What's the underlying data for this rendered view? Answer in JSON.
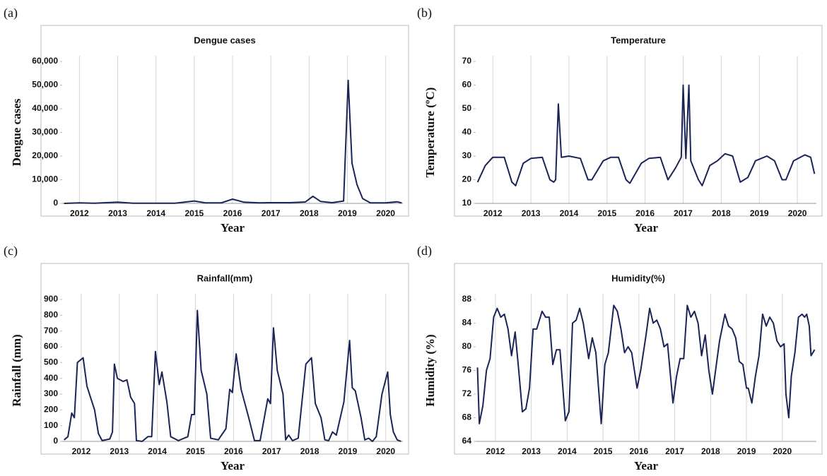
{
  "chart_data": [
    {
      "type": "line",
      "panel": "(a)",
      "title": "Dengue cases",
      "xlabel": "Year",
      "ylabel": "Dengue cases",
      "color": "#1a2456",
      "xlim": [
        2011.55,
        2020.45
      ],
      "xticks": [
        2012,
        2013,
        2014,
        2015,
        2016,
        2017,
        2018,
        2019,
        2020
      ],
      "grid": true,
      "ylim": [
        0,
        60000
      ],
      "yticks": [
        0,
        {
          "value": 10000,
          "label": "10,000"
        },
        {
          "value": 20000,
          "label": "20,000"
        },
        {
          "value": 30000,
          "label": "30,000"
        },
        {
          "value": 40000,
          "label": "40,000"
        },
        {
          "value": 50000,
          "label": "50,000"
        },
        {
          "value": 60000,
          "label": "60,000"
        }
      ],
      "x": [
        2011.6,
        2012,
        2012.4,
        2013,
        2013.4,
        2014,
        2014.5,
        2015,
        2015.3,
        2015.7,
        2016,
        2016.3,
        2016.7,
        2017,
        2017.5,
        2017.9,
        2018.1,
        2018.3,
        2018.6,
        2018.9,
        2019.02,
        2019.12,
        2019.25,
        2019.4,
        2019.6,
        2020,
        2020.3,
        2020.42
      ],
      "values": [
        0,
        200,
        100,
        500,
        100,
        100,
        100,
        1000,
        200,
        200,
        1800,
        500,
        200,
        300,
        300,
        600,
        3000,
        800,
        300,
        1000,
        52000,
        17000,
        8000,
        2000,
        200,
        200,
        700,
        200
      ]
    },
    {
      "type": "line",
      "panel": "(b)",
      "title": "Temperature",
      "xlabel": "Year",
      "ylabel": "Temperature (ºC)",
      "color": "#1a2456",
      "xlim": [
        2011.55,
        2020.5
      ],
      "xticks": [
        2012,
        2013,
        2014,
        2015,
        2016,
        2017,
        2018,
        2019,
        2020
      ],
      "grid": true,
      "ylim": [
        10,
        70
      ],
      "yticks": [
        10,
        20,
        30,
        40,
        50,
        60,
        70
      ],
      "x": [
        2011.6,
        2011.8,
        2012.0,
        2012.3,
        2012.5,
        2012.6,
        2012.8,
        2013.0,
        2013.3,
        2013.5,
        2013.6,
        2013.65,
        2013.72,
        2013.8,
        2014.0,
        2014.3,
        2014.5,
        2014.6,
        2014.9,
        2015.1,
        2015.3,
        2015.5,
        2015.6,
        2015.9,
        2016.1,
        2016.4,
        2016.6,
        2016.8,
        2016.95,
        2017.0,
        2017.07,
        2017.15,
        2017.2,
        2017.4,
        2017.5,
        2017.7,
        2017.9,
        2018.1,
        2018.3,
        2018.5,
        2018.7,
        2018.9,
        2019.2,
        2019.4,
        2019.6,
        2019.7,
        2019.9,
        2020.2,
        2020.35,
        2020.45
      ],
      "values": [
        19,
        26,
        29.5,
        29.5,
        19,
        17.5,
        27,
        29,
        29.5,
        20,
        19,
        20,
        52,
        29.5,
        30,
        29,
        20,
        20,
        28,
        29.5,
        29.5,
        20,
        18.5,
        27,
        29,
        29.5,
        20,
        25,
        29.5,
        60,
        29,
        60,
        28,
        20,
        17.5,
        26,
        28,
        31,
        30,
        19,
        21,
        28,
        30,
        28,
        20,
        20,
        28,
        30.5,
        29.5,
        22.5
      ]
    },
    {
      "type": "line",
      "panel": "(c)",
      "title": "Rainfall(mm)",
      "xlabel": "Year",
      "ylabel": "Rainfall (mm)",
      "color": "#1a2456",
      "xlim": [
        2011.5,
        2020.45
      ],
      "xticks": [
        2012,
        2013,
        2014,
        2015,
        2016,
        2017,
        2018,
        2019,
        2020
      ],
      "grid": true,
      "ylim": [
        0,
        900
      ],
      "yticks": [
        0,
        100,
        200,
        300,
        400,
        500,
        600,
        700,
        800,
        900
      ],
      "x": [
        2011.55,
        2011.65,
        2011.75,
        2011.82,
        2011.9,
        2012.05,
        2012.15,
        2012.35,
        2012.45,
        2012.55,
        2012.75,
        2012.82,
        2012.87,
        2012.95,
        2013.1,
        2013.2,
        2013.3,
        2013.4,
        2013.45,
        2013.6,
        2013.75,
        2013.85,
        2013.95,
        2014.05,
        2014.12,
        2014.25,
        2014.35,
        2014.55,
        2014.8,
        2014.9,
        2014.97,
        2015.05,
        2015.15,
        2015.3,
        2015.4,
        2015.6,
        2015.8,
        2015.9,
        2015.97,
        2016.07,
        2016.2,
        2016.4,
        2016.55,
        2016.7,
        2016.9,
        2016.97,
        2017.05,
        2017.15,
        2017.3,
        2017.37,
        2017.45,
        2017.55,
        2017.7,
        2017.9,
        2018.05,
        2018.15,
        2018.3,
        2018.4,
        2018.5,
        2018.6,
        2018.7,
        2018.9,
        2019.05,
        2019.12,
        2019.2,
        2019.35,
        2019.45,
        2019.55,
        2019.65,
        2019.75,
        2019.9,
        2020.05,
        2020.12,
        2020.2,
        2020.3,
        2020.4
      ],
      "values": [
        10,
        30,
        180,
        150,
        500,
        530,
        350,
        200,
        50,
        5,
        15,
        60,
        490,
        400,
        380,
        390,
        280,
        240,
        5,
        0,
        30,
        30,
        570,
        360,
        440,
        250,
        30,
        5,
        30,
        170,
        170,
        830,
        450,
        300,
        20,
        10,
        80,
        330,
        310,
        555,
        330,
        150,
        5,
        5,
        270,
        240,
        720,
        450,
        300,
        10,
        40,
        5,
        20,
        490,
        530,
        240,
        150,
        10,
        5,
        60,
        40,
        250,
        640,
        340,
        320,
        150,
        10,
        20,
        0,
        30,
        300,
        440,
        170,
        60,
        10,
        0
      ]
    },
    {
      "type": "line",
      "panel": "(d)",
      "title": "Humidity(%)",
      "xlabel": "Year",
      "ylabel": "Humidity (%)",
      "color": "#1a2456",
      "xlim": [
        2011.45,
        2020.95
      ],
      "xticks": [
        2012,
        2013,
        2014,
        2015,
        2016,
        2017,
        2018,
        2019,
        2020
      ],
      "grid": true,
      "ylim": [
        64,
        88
      ],
      "yticks": [
        64,
        68,
        72,
        76,
        80,
        84,
        88
      ],
      "x": [
        2011.5,
        2011.55,
        2011.65,
        2011.75,
        2011.85,
        2011.95,
        2012.05,
        2012.15,
        2012.25,
        2012.35,
        2012.45,
        2012.55,
        2012.65,
        2012.75,
        2012.85,
        2012.95,
        2013.05,
        2013.15,
        2013.3,
        2013.4,
        2013.5,
        2013.6,
        2013.7,
        2013.8,
        2013.95,
        2014.05,
        2014.15,
        2014.25,
        2014.35,
        2014.45,
        2014.6,
        2014.7,
        2014.8,
        2014.95,
        2015.05,
        2015.15,
        2015.3,
        2015.4,
        2015.5,
        2015.6,
        2015.7,
        2015.8,
        2015.95,
        2016.05,
        2016.2,
        2016.3,
        2016.4,
        2016.5,
        2016.6,
        2016.7,
        2016.8,
        2016.95,
        2017.05,
        2017.15,
        2017.25,
        2017.35,
        2017.45,
        2017.55,
        2017.65,
        2017.75,
        2017.85,
        2017.95,
        2018.05,
        2018.15,
        2018.25,
        2018.4,
        2018.5,
        2018.6,
        2018.7,
        2018.8,
        2018.9,
        2019.0,
        2019.05,
        2019.15,
        2019.25,
        2019.35,
        2019.45,
        2019.55,
        2019.65,
        2019.75,
        2019.85,
        2019.95,
        2020.05,
        2020.1,
        2020.18,
        2020.25,
        2020.35,
        2020.45,
        2020.55,
        2020.62,
        2020.68,
        2020.75,
        2020.8,
        2020.9
      ],
      "values": [
        76.5,
        67,
        70,
        76,
        78,
        85,
        86.5,
        85,
        85.5,
        83,
        78.5,
        82.5,
        76,
        69,
        69.5,
        73,
        83,
        83,
        86,
        85,
        85,
        77,
        79.5,
        79.5,
        67.5,
        69,
        84,
        84.5,
        86.5,
        84,
        78,
        81.5,
        79,
        67,
        77,
        79,
        87,
        86,
        83,
        79,
        80,
        79,
        73,
        76,
        82,
        86.5,
        84,
        84.5,
        83,
        80,
        80.5,
        70.5,
        75,
        78,
        78,
        87,
        85,
        86,
        84,
        78.5,
        82,
        76,
        72,
        76.5,
        81,
        85.5,
        83.5,
        83,
        81.5,
        77.5,
        77,
        73,
        73,
        70.5,
        75,
        78.5,
        85.5,
        83.5,
        85,
        84,
        81,
        80,
        80.5,
        72,
        68,
        75,
        79,
        85,
        85.5,
        85,
        85.5,
        83.5,
        78.5,
        79.5
      ]
    }
  ]
}
